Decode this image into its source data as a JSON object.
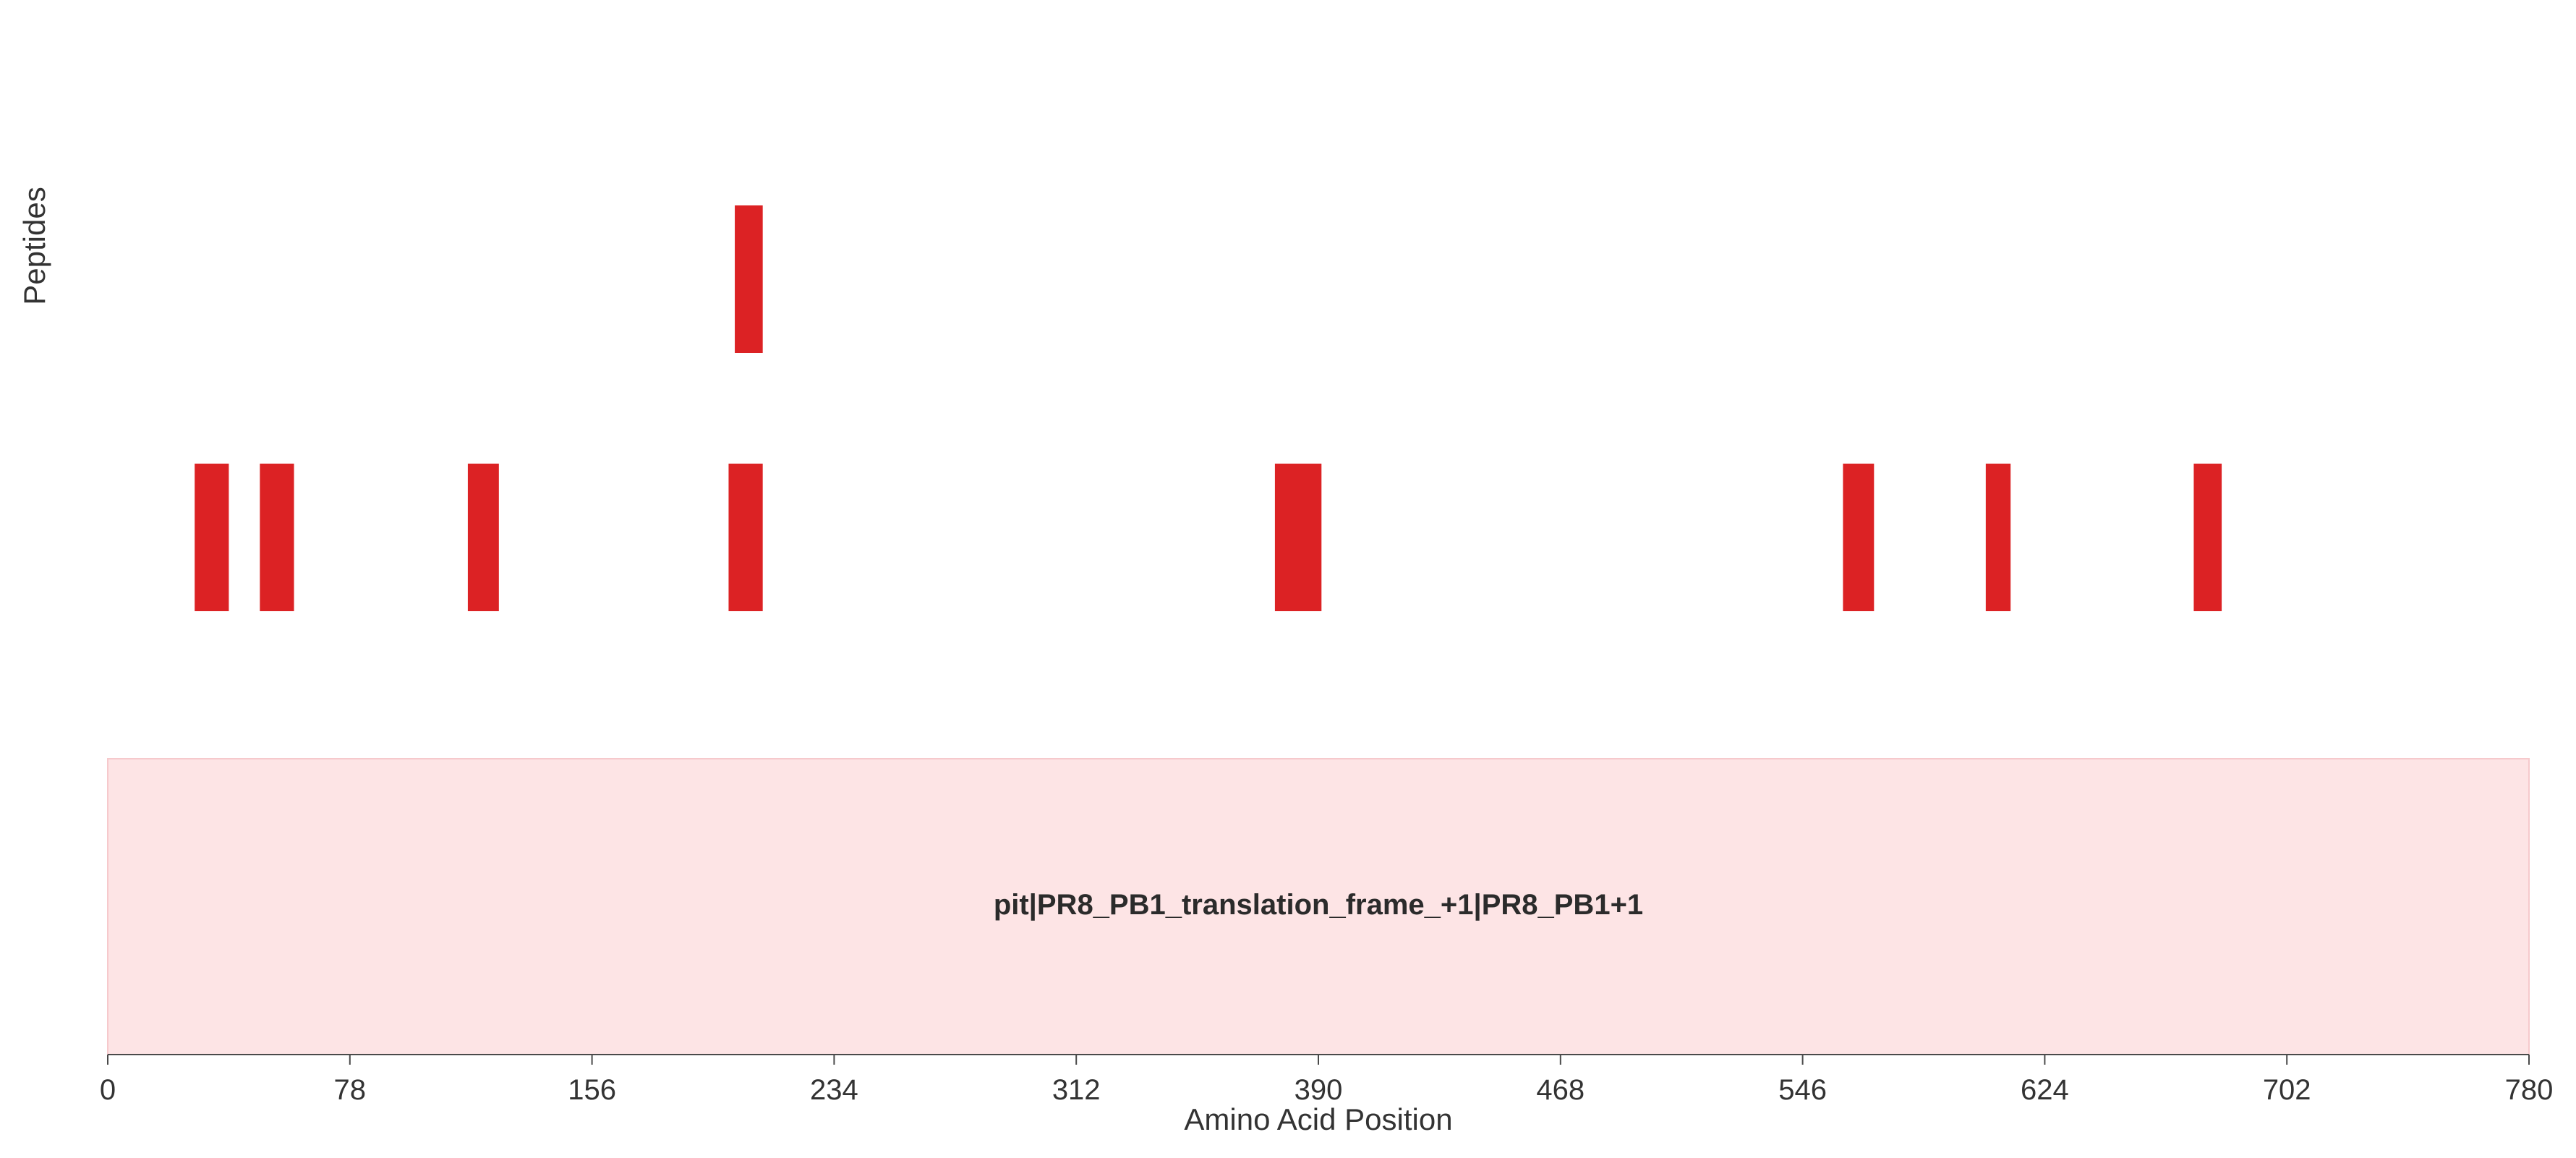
{
  "chart_data": {
    "type": "bar",
    "subtype": "peptide-coverage-map",
    "xlabel": "Amino Acid Position",
    "ylabel": "Peptides",
    "xlim": [
      0,
      780
    ],
    "xticks": [
      0,
      78,
      156,
      234,
      312,
      390,
      468,
      546,
      624,
      702,
      780
    ],
    "grid": false,
    "legend": "none",
    "protein": {
      "label": "pit|PR8_PB1_translation_frame_+1|PR8_PB1+1",
      "start": 0,
      "end": 780,
      "fill_color": "#fde4e5",
      "border_color": "#f6c9cc"
    },
    "peptide_color": "#dc2224",
    "peptides": [
      {
        "row": 1,
        "start": 28,
        "end": 39
      },
      {
        "row": 1,
        "start": 49,
        "end": 60
      },
      {
        "row": 1,
        "start": 116,
        "end": 126
      },
      {
        "row": 1,
        "start": 200,
        "end": 211
      },
      {
        "row": 1,
        "start": 376,
        "end": 391
      },
      {
        "row": 1,
        "start": 559,
        "end": 569
      },
      {
        "row": 1,
        "start": 605,
        "end": 613
      },
      {
        "row": 1,
        "start": 672,
        "end": 681
      },
      {
        "row": 2,
        "start": 202,
        "end": 211
      }
    ]
  }
}
